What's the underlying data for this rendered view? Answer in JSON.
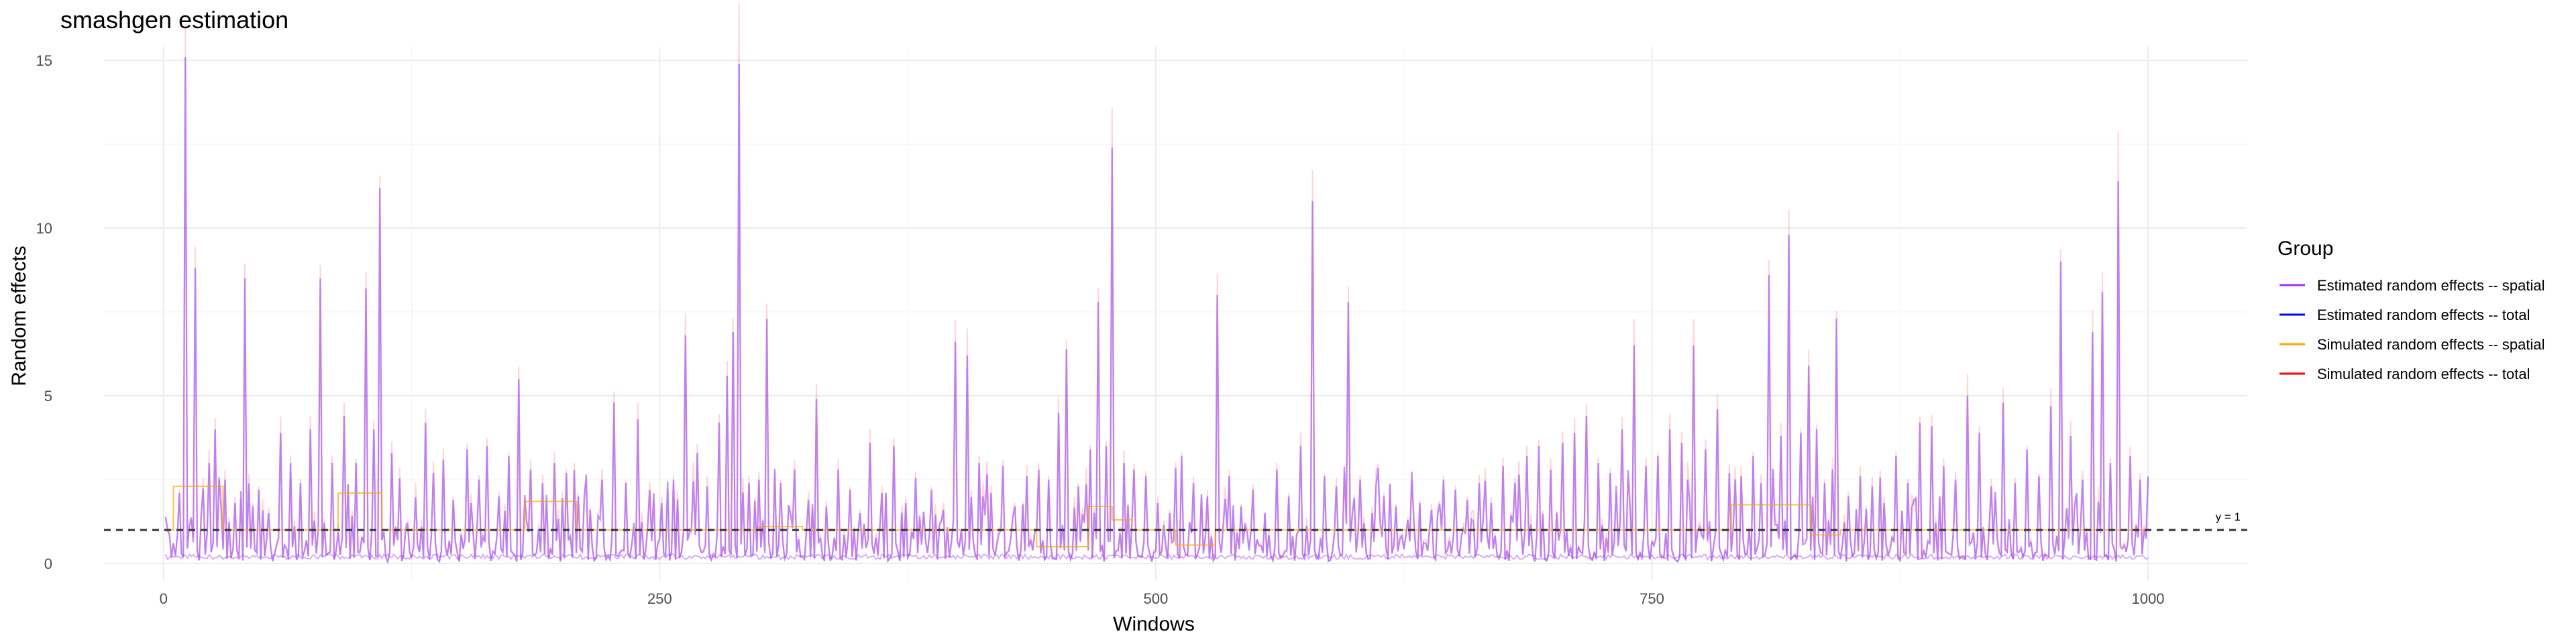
{
  "chart_data": {
    "type": "line",
    "title": "smashgen estimation",
    "xlabel": "Windows",
    "ylabel": "Random effects",
    "xlim": [
      -30,
      1050
    ],
    "ylim": [
      -0.5,
      15.4
    ],
    "x_ticks": [
      0,
      250,
      500,
      750,
      1000
    ],
    "y_ticks": [
      0,
      5,
      10,
      15
    ],
    "grid": true,
    "legend": {
      "title": "Group",
      "position": "right",
      "entries": [
        {
          "label": "Estimated random effects -- spatial",
          "color": "#9B30FF"
        },
        {
          "label": "Estimated random effects -- total",
          "color": "#0000FF"
        },
        {
          "label": "Simulated random effects -- spatial",
          "color": "#FFA500"
        },
        {
          "label": "Simulated random effects -- total",
          "color": "#FF0000"
        }
      ]
    },
    "reference_line": {
      "y": 1,
      "label": "y = 1",
      "style": "dashed"
    },
    "n_windows": 1000,
    "spikes": [
      [
        7,
        2.1
      ],
      [
        10,
        15.1
      ],
      [
        15,
        8.8
      ],
      [
        22,
        3.0
      ],
      [
        25,
        4.0
      ],
      [
        30,
        2.5
      ],
      [
        35,
        1.8
      ],
      [
        40,
        8.5
      ],
      [
        47,
        2.2
      ],
      [
        52,
        1.5
      ],
      [
        58,
        3.9
      ],
      [
        63,
        3.0
      ],
      [
        68,
        2.4
      ],
      [
        73,
        4.0
      ],
      [
        78,
        8.5
      ],
      [
        84,
        3.0
      ],
      [
        90,
        4.4
      ],
      [
        96,
        3.0
      ],
      [
        101,
        8.2
      ],
      [
        105,
        4.0
      ],
      [
        108,
        11.2
      ],
      [
        114,
        3.3
      ],
      [
        122,
        1.2
      ],
      [
        131,
        4.2
      ],
      [
        135,
        2.7
      ],
      [
        140,
        3.1
      ],
      [
        145,
        1.9
      ],
      [
        152,
        3.4
      ],
      [
        158,
        2.5
      ],
      [
        162,
        3.5
      ],
      [
        168,
        2.0
      ],
      [
        173,
        3.2
      ],
      [
        178,
        5.5
      ],
      [
        184,
        2.8
      ],
      [
        190,
        2.4
      ],
      [
        196,
        3.0
      ],
      [
        202,
        2.7
      ],
      [
        208,
        2.0
      ],
      [
        214,
        1.6
      ],
      [
        220,
        2.5
      ],
      [
        226,
        4.8
      ],
      [
        232,
        2.4
      ],
      [
        238,
        4.3
      ],
      [
        244,
        2.2
      ],
      [
        250,
        1.8
      ],
      [
        256,
        2.5
      ],
      [
        262,
        6.8
      ],
      [
        268,
        3.3
      ],
      [
        273,
        2.3
      ],
      [
        279,
        4.2
      ],
      [
        283,
        5.6
      ],
      [
        286,
        6.9
      ],
      [
        289,
        14.9
      ],
      [
        294,
        2.4
      ],
      [
        299,
        2.5
      ],
      [
        303,
        7.3
      ],
      [
        310,
        2.4
      ],
      [
        317,
        2.8
      ],
      [
        324,
        1.9
      ],
      [
        328,
        4.9
      ],
      [
        333,
        1.7
      ],
      [
        339,
        2.8
      ],
      [
        345,
        2.2
      ],
      [
        350,
        1.5
      ],
      [
        355,
        3.6
      ],
      [
        361,
        2.1
      ],
      [
        367,
        3.5
      ],
      [
        373,
        1.8
      ],
      [
        380,
        1.4
      ],
      [
        386,
        2.2
      ],
      [
        392,
        1.6
      ],
      [
        398,
        6.6
      ],
      [
        404,
        6.2
      ],
      [
        410,
        3.0
      ],
      [
        416,
        2.1
      ],
      [
        422,
        2.9
      ],
      [
        428,
        1.7
      ],
      [
        434,
        2.6
      ],
      [
        440,
        2.8
      ],
      [
        445,
        2.5
      ],
      [
        450,
        4.5
      ],
      [
        454,
        6.4
      ],
      [
        460,
        2.3
      ],
      [
        466,
        3.4
      ],
      [
        470,
        7.8
      ],
      [
        474,
        3.5
      ],
      [
        477,
        12.4
      ],
      [
        483,
        3.0
      ],
      [
        488,
        2.8
      ],
      [
        494,
        2.6
      ],
      [
        500,
        1.8
      ],
      [
        506,
        1.5
      ],
      [
        512,
        3.2
      ],
      [
        518,
        2.4
      ],
      [
        525,
        2.0
      ],
      [
        530,
        8.0
      ],
      [
        536,
        2.6
      ],
      [
        542,
        1.7
      ],
      [
        548,
        2.2
      ],
      [
        554,
        1.5
      ],
      [
        560,
        2.8
      ],
      [
        566,
        2.0
      ],
      [
        572,
        3.5
      ],
      [
        578,
        10.8
      ],
      [
        584,
        2.6
      ],
      [
        590,
        2.3
      ],
      [
        596,
        7.8
      ],
      [
        602,
        2.5
      ],
      [
        608,
        1.5
      ],
      [
        614,
        2.0
      ],
      [
        620,
        1.7
      ],
      [
        626,
        1.3
      ],
      [
        632,
        1.8
      ],
      [
        638,
        1.6
      ],
      [
        644,
        2.5
      ],
      [
        650,
        2.2
      ],
      [
        656,
        1.9
      ],
      [
        662,
        2.4
      ],
      [
        668,
        1.8
      ],
      [
        674,
        2.9
      ],
      [
        680,
        2.4
      ],
      [
        686,
        3.2
      ],
      [
        692,
        3.5
      ],
      [
        698,
        2.8
      ],
      [
        704,
        3.6
      ],
      [
        710,
        3.9
      ],
      [
        716,
        4.4
      ],
      [
        722,
        3.0
      ],
      [
        728,
        2.7
      ],
      [
        734,
        4.0
      ],
      [
        740,
        6.5
      ],
      [
        746,
        2.9
      ],
      [
        752,
        3.2
      ],
      [
        758,
        4.0
      ],
      [
        764,
        3.6
      ],
      [
        770,
        6.5
      ],
      [
        776,
        3.4
      ],
      [
        782,
        4.6
      ],
      [
        788,
        2.7
      ],
      [
        794,
        2.6
      ],
      [
        800,
        3.2
      ],
      [
        804,
        2.4
      ],
      [
        808,
        8.6
      ],
      [
        814,
        3.8
      ],
      [
        818,
        9.8
      ],
      [
        824,
        3.9
      ],
      [
        828,
        5.9
      ],
      [
        832,
        4.0
      ],
      [
        836,
        2.4
      ],
      [
        842,
        7.3
      ],
      [
        848,
        2.0
      ],
      [
        854,
        2.6
      ],
      [
        860,
        2.3
      ],
      [
        866,
        1.8
      ],
      [
        872,
        3.2
      ],
      [
        878,
        2.4
      ],
      [
        884,
        4.2
      ],
      [
        890,
        4.1
      ],
      [
        896,
        2.9
      ],
      [
        902,
        2.5
      ],
      [
        908,
        5.0
      ],
      [
        914,
        3.9
      ],
      [
        920,
        2.3
      ],
      [
        926,
        4.8
      ],
      [
        932,
        2.4
      ],
      [
        938,
        3.4
      ],
      [
        944,
        2.6
      ],
      [
        950,
        4.7
      ],
      [
        955,
        9.0
      ],
      [
        960,
        3.8
      ],
      [
        966,
        2.5
      ],
      [
        971,
        6.9
      ],
      [
        976,
        8.1
      ],
      [
        980,
        3.0
      ],
      [
        984,
        11.4
      ],
      [
        990,
        3.2
      ],
      [
        995,
        2.5
      ]
    ],
    "simulated_spatial_steps": [
      [
        0,
        5,
        1.0
      ],
      [
        5,
        30,
        2.3
      ],
      [
        30,
        88,
        1.0
      ],
      [
        88,
        110,
        2.1
      ],
      [
        110,
        182,
        1.0
      ],
      [
        182,
        208,
        1.85
      ],
      [
        208,
        300,
        1.0
      ],
      [
        300,
        322,
        1.1
      ],
      [
        322,
        440,
        1.0
      ],
      [
        440,
        466,
        0.5
      ],
      [
        466,
        478,
        1.7
      ],
      [
        478,
        488,
        1.3
      ],
      [
        488,
        510,
        1.0
      ],
      [
        510,
        530,
        0.55
      ],
      [
        530,
        790,
        1.0
      ],
      [
        790,
        830,
        1.75
      ],
      [
        830,
        845,
        0.85
      ],
      [
        845,
        1000,
        1.0
      ]
    ]
  }
}
